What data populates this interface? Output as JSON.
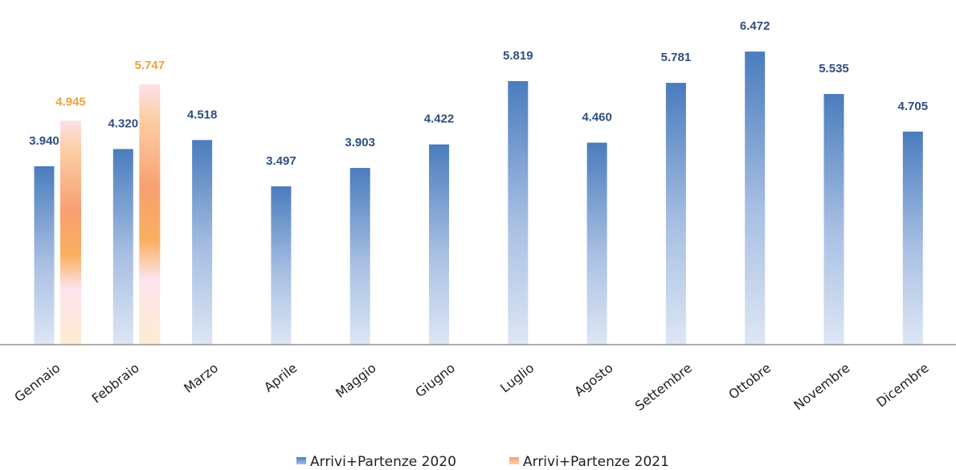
{
  "chart_data": {
    "type": "bar",
    "title": "",
    "xlabel": "",
    "ylabel": "",
    "categories": [
      "Gennaio",
      "Febbraio",
      "Marzo",
      "Aprile",
      "Maggio",
      "Giugno",
      "Luglio",
      "Agosto",
      "Settembre",
      "Ottobre",
      "Novembre",
      "Dicembre"
    ],
    "series": [
      {
        "name": "Arrivi+Partenze 2020",
        "values": [
          3940,
          4320,
          4518,
          3497,
          3903,
          4422,
          5819,
          4460,
          5781,
          6472,
          5535,
          4705
        ],
        "labels": [
          "3.940",
          "4.320",
          "4.518",
          "3.497",
          "3.903",
          "4.422",
          "5.819",
          "4.460",
          "5.781",
          "6.472",
          "5.535",
          "4.705"
        ],
        "color": "#4f81bd",
        "label_color": "#2f4f7f"
      },
      {
        "name": "Arrivi+Partenze 2021",
        "values": [
          4945,
          5747,
          null,
          null,
          null,
          null,
          null,
          null,
          null,
          null,
          null,
          null
        ],
        "labels": [
          "4.945",
          "5.747",
          "",
          "",
          "",
          "",
          "",
          "",
          "",
          "",
          "",
          ""
        ],
        "color": "#f79646",
        "label_color": "#f0a040"
      }
    ],
    "ylim": [
      0,
      6800
    ],
    "grid": false,
    "legend_position": "bottom"
  }
}
